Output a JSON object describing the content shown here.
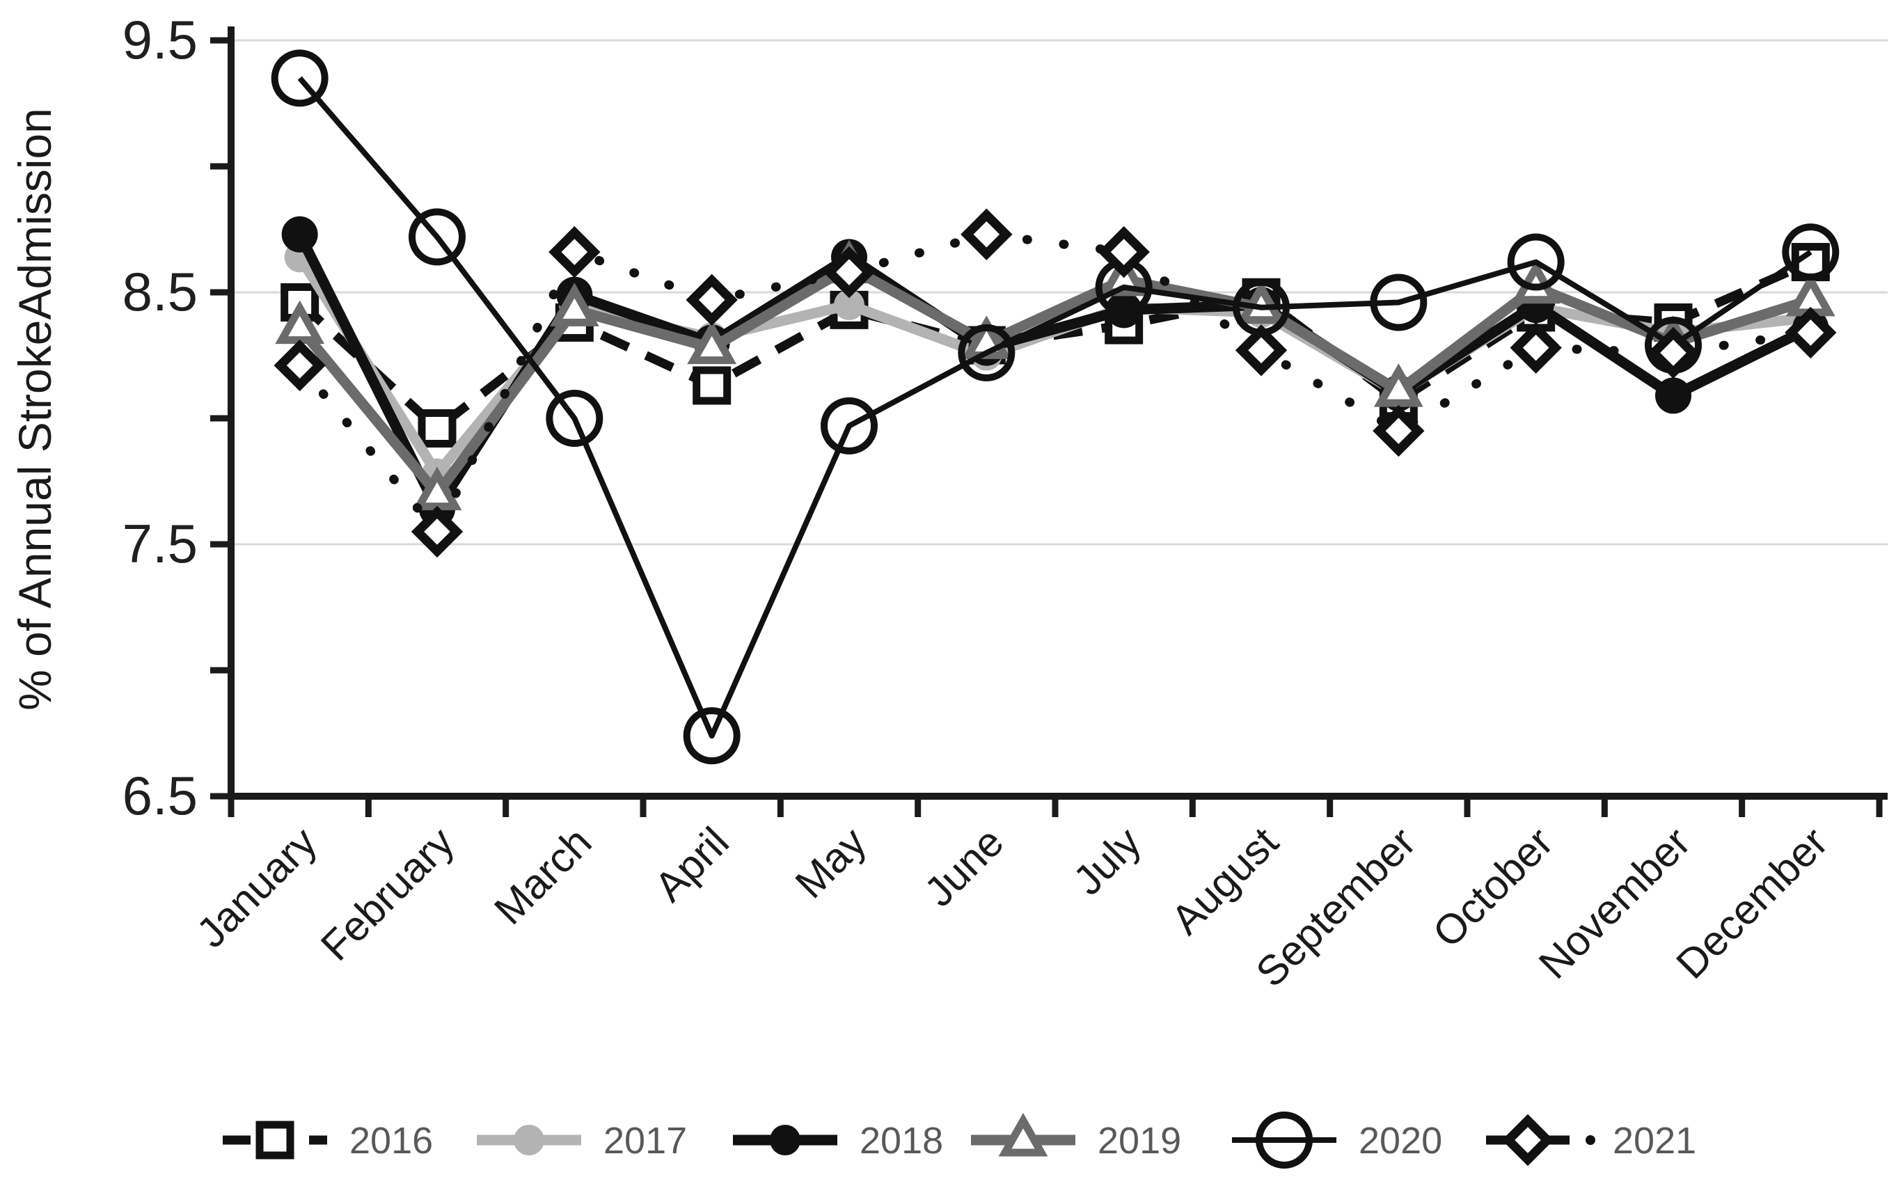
{
  "page": {
    "background": "#ffffff"
  },
  "y_axis": {
    "title": "% of Annual StrokeAdmission",
    "min": 6.5,
    "max": 9.5,
    "labeled_ticks": [
      "9.5",
      "8.5",
      "7.5",
      "6.5"
    ],
    "labeled_tick_values": [
      9.5,
      8.5,
      7.5,
      6.5
    ],
    "minor_tick_values": [
      9.0,
      8.0,
      7.0
    ],
    "gridline_values": [
      9.5,
      8.5,
      7.5
    ],
    "gridline_color": "#d9d9d9",
    "axis_color": "#1a1a1a",
    "label_color": "#1f1f1f"
  },
  "x_axis": {
    "label_color": "#1a1a1a",
    "label_rotation_deg": -45
  },
  "legend": {
    "position": "bottom",
    "text_color": "#595959",
    "entries": [
      {
        "label": "2016"
      },
      {
        "label": "2017"
      },
      {
        "label": "2018"
      },
      {
        "label": "2019"
      },
      {
        "label": "2020"
      },
      {
        "label": "2021"
      }
    ]
  },
  "chart_data": {
    "type": "line",
    "title": "",
    "xlabel": "",
    "ylabel": "% of Annual StrokeAdmission",
    "ylim": [
      6.5,
      9.5
    ],
    "grid": "horizontal-light",
    "legend_position": "bottom",
    "categories": [
      "January",
      "February",
      "March",
      "April",
      "May",
      "June",
      "July",
      "August",
      "September",
      "October",
      "November",
      "December"
    ],
    "series": [
      {
        "name": "2016",
        "color": "#111111",
        "line_style": "dashed",
        "marker": "open-square",
        "values": [
          8.46,
          7.96,
          8.38,
          8.13,
          8.43,
          8.29,
          8.37,
          8.48,
          8.07,
          8.42,
          8.38,
          8.62
        ]
      },
      {
        "name": "2017",
        "color": "#b3b3b3",
        "line_style": "solid",
        "marker": "filled-circle",
        "values": [
          8.64,
          7.78,
          8.44,
          8.32,
          8.45,
          8.25,
          8.44,
          8.42,
          8.1,
          8.44,
          8.34,
          8.4
        ]
      },
      {
        "name": "2018",
        "color": "#111111",
        "line_style": "solid",
        "marker": "filled-circle",
        "values": [
          8.73,
          7.64,
          8.49,
          8.3,
          8.64,
          8.28,
          8.43,
          8.45,
          8.1,
          8.45,
          8.09,
          8.36
        ]
      },
      {
        "name": "2019",
        "color": "#6b6b6b",
        "line_style": "solid",
        "marker": "open-triangle",
        "values": [
          8.36,
          7.7,
          8.43,
          8.28,
          8.6,
          8.3,
          8.55,
          8.44,
          8.11,
          8.52,
          8.3,
          8.47
        ]
      },
      {
        "name": "2020",
        "color": "#111111",
        "line_style": "solid-thin",
        "marker": "open-circle",
        "values": [
          9.35,
          8.72,
          8.0,
          6.74,
          7.97,
          8.26,
          8.52,
          8.44,
          8.46,
          8.62,
          8.29,
          8.66
        ]
      },
      {
        "name": "2021",
        "color": "#111111",
        "line_style": "dotted",
        "marker": "open-diamond",
        "values": [
          8.21,
          7.55,
          8.66,
          8.47,
          8.58,
          8.73,
          8.66,
          8.27,
          7.95,
          8.28,
          8.26,
          8.34
        ]
      }
    ]
  }
}
